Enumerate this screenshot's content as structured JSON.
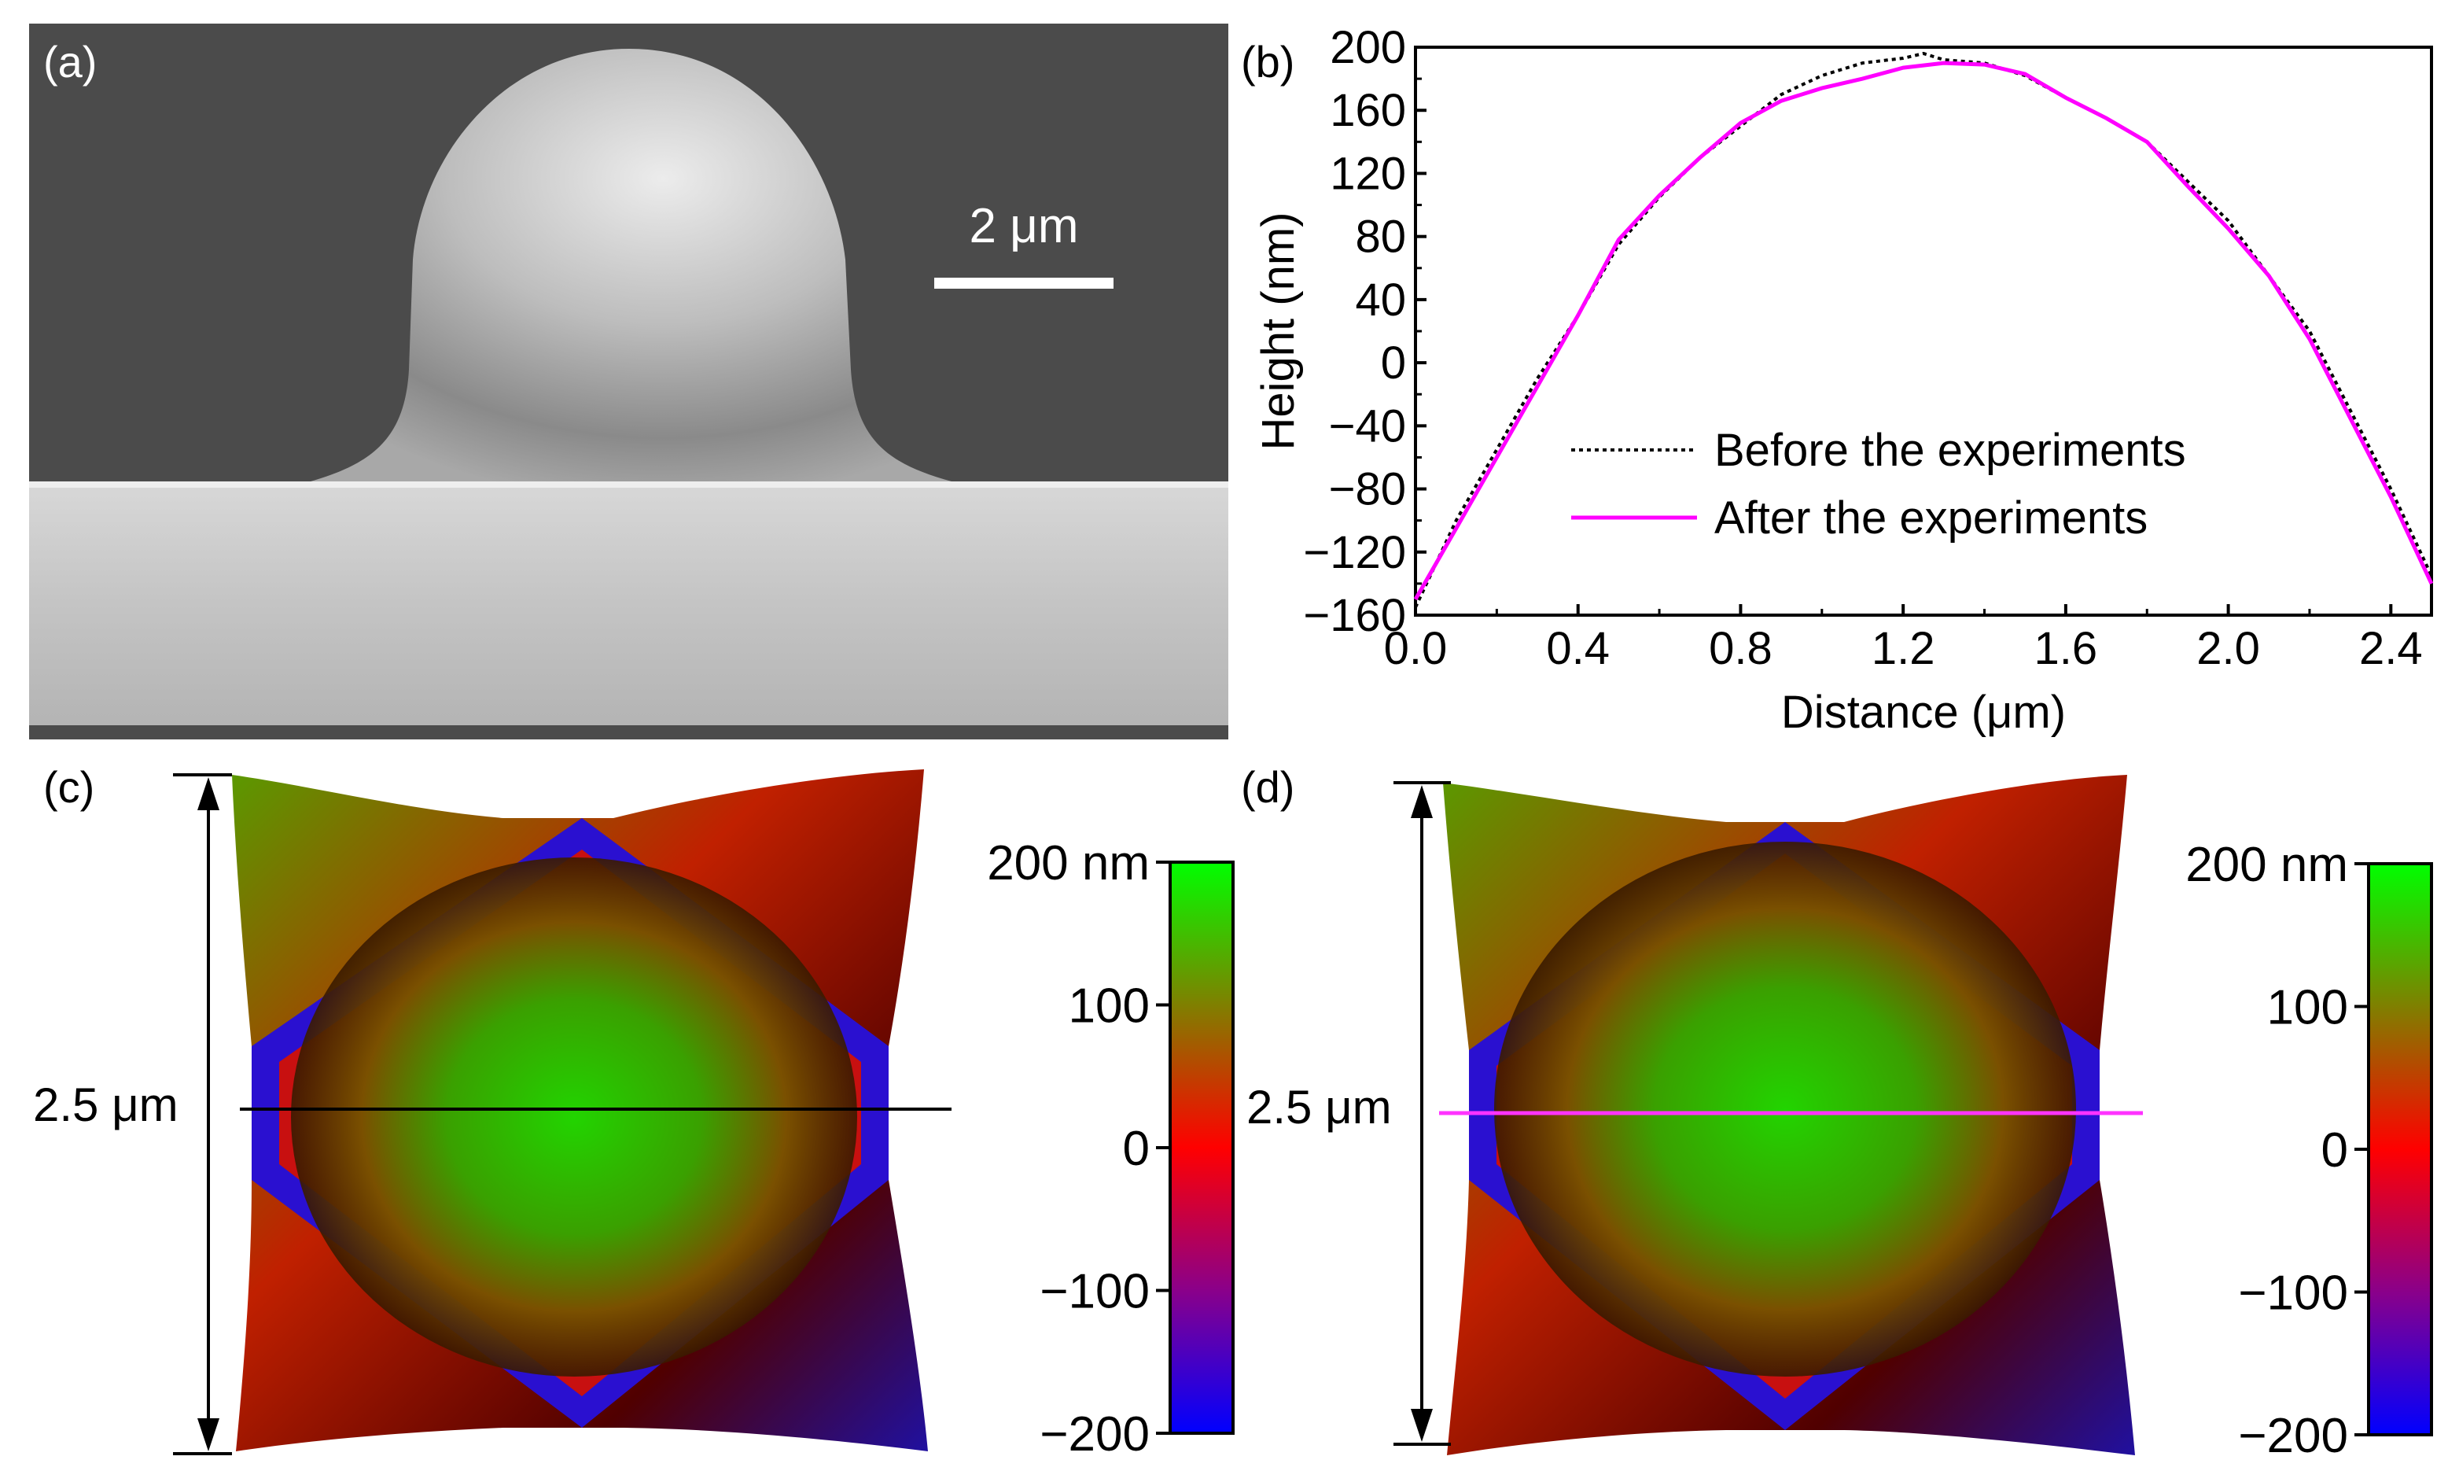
{
  "panels": {
    "a": {
      "label": "(a)",
      "scale_bar_label": "2 μm"
    },
    "b": {
      "label": "(b)"
    },
    "c": {
      "label": "(c)",
      "dimension_label": "2.5 μm",
      "colorbar": {
        "ticks": [
          "200 nm",
          "100",
          "0",
          "−100",
          "−200"
        ]
      },
      "line_color": "#000000"
    },
    "d": {
      "label": "(d)",
      "dimension_label": "2.5 μm",
      "colorbar": {
        "ticks": [
          "200 nm",
          "100",
          "0",
          "−100",
          "−200"
        ]
      },
      "line_color": "#ff33ff"
    }
  },
  "colors": {
    "sem_background": "#4a4a4a",
    "dome_highlight": "#e6e6e6",
    "substrate": "#bdbdbd",
    "profile_before": "#000000",
    "profile_after": "#ff00ff",
    "map_high": "#00ff00",
    "map_mid": "#ff0000",
    "map_low": "#0000ff"
  },
  "chart_data": {
    "type": "line",
    "xlabel": "Distance (μm)",
    "ylabel": "Height (nm)",
    "xlim": [
      0.0,
      2.5
    ],
    "ylim": [
      -160,
      200
    ],
    "xticks": [
      "0.0",
      "0.4",
      "0.8",
      "1.2",
      "1.6",
      "2.0",
      "2.4"
    ],
    "yticks": [
      "200",
      "160",
      "120",
      "80",
      "40",
      "0",
      "−40",
      "−80",
      "−120",
      "−160"
    ],
    "legend_placement": "center-right",
    "grid": false,
    "series": [
      {
        "name": "Before the experiments",
        "style": "dotted",
        "x": [
          0.0,
          0.1,
          0.2,
          0.3,
          0.4,
          0.5,
          0.6,
          0.7,
          0.8,
          0.9,
          1.0,
          1.1,
          1.2,
          1.25,
          1.3,
          1.4,
          1.5,
          1.6,
          1.7,
          1.8,
          1.9,
          2.0,
          2.1,
          2.2,
          2.3,
          2.4,
          2.5
        ],
        "y": [
          -155,
          -100,
          -55,
          -10,
          30,
          75,
          105,
          130,
          150,
          170,
          182,
          190,
          193,
          196,
          192,
          190,
          182,
          168,
          155,
          140,
          115,
          90,
          55,
          20,
          -30,
          -80,
          -135
        ]
      },
      {
        "name": "After the experiments",
        "style": "solid",
        "x": [
          0.0,
          0.1,
          0.2,
          0.3,
          0.4,
          0.5,
          0.6,
          0.7,
          0.8,
          0.9,
          1.0,
          1.1,
          1.2,
          1.3,
          1.4,
          1.5,
          1.6,
          1.7,
          1.8,
          1.9,
          2.0,
          2.1,
          2.2,
          2.3,
          2.4,
          2.5
        ],
        "y": [
          -150,
          -105,
          -60,
          -15,
          30,
          78,
          106,
          130,
          152,
          166,
          174,
          180,
          187,
          190,
          189,
          183,
          168,
          155,
          140,
          112,
          85,
          55,
          15,
          -35,
          -85,
          -140
        ]
      }
    ]
  }
}
